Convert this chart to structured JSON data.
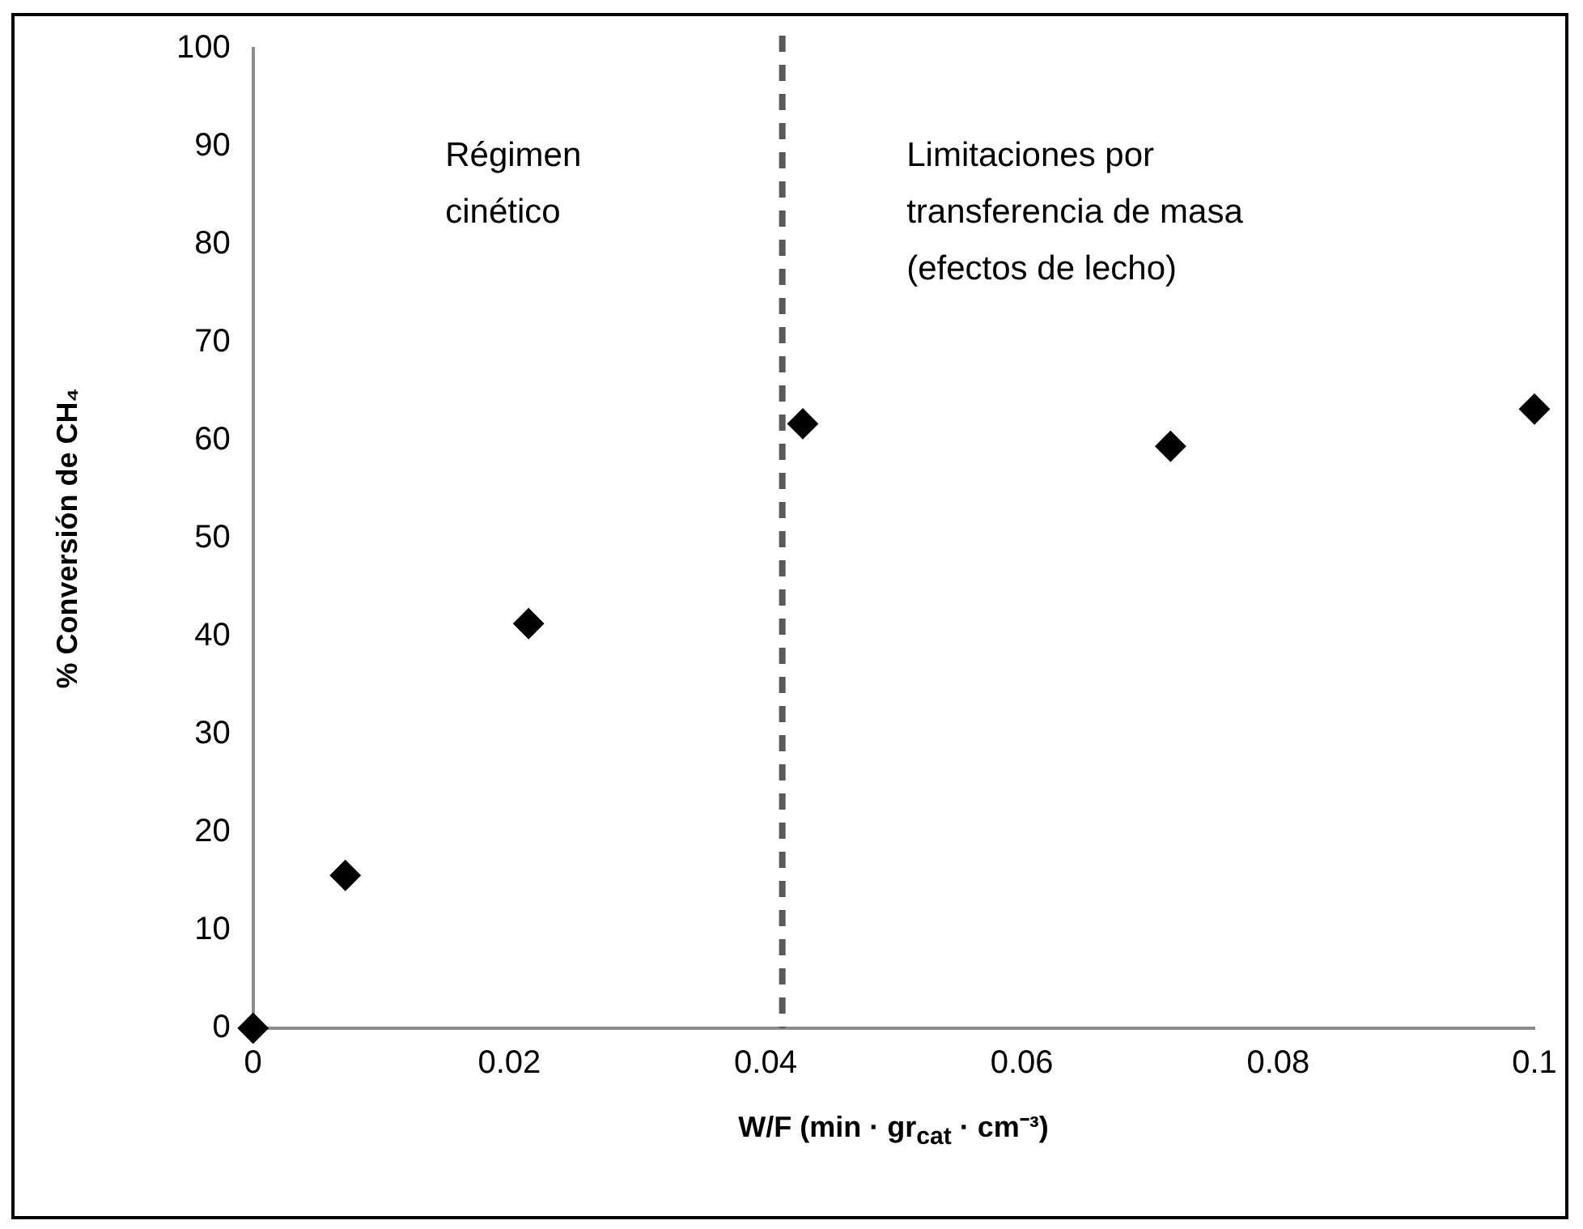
{
  "chart_data": {
    "type": "scatter",
    "xlabel": "W/F (min · gr$_{cat}$ · cm⁻³)",
    "ylabel": "% Conversión de CH₄",
    "x": [
      0,
      0.0072,
      0.0215,
      0.0429,
      0.0716,
      0.1
    ],
    "series": [
      {
        "color": "#000000",
        "values": [
          0,
          15.6,
          41.3,
          61.7,
          59.4,
          63.2
        ]
      }
    ],
    "xlim": [
      0,
      0.1
    ],
    "xticks": [
      0,
      0.02,
      0.04,
      0.06,
      0.08,
      0.1
    ],
    "ylim": [
      0,
      100
    ],
    "yticks": [
      0,
      10,
      20,
      30,
      40,
      50,
      60,
      70,
      80,
      90,
      100
    ],
    "marker": "diamond",
    "grid": false,
    "legend": false,
    "ref_lines": [
      {
        "axis": "x",
        "value": 0.0413,
        "color": "#595959",
        "line_style": "dashed"
      }
    ],
    "annotations": [
      "Régimen\ncinético",
      "Limitaciones por\ntransferencia de masa\n(efectos de lecho)"
    ]
  }
}
